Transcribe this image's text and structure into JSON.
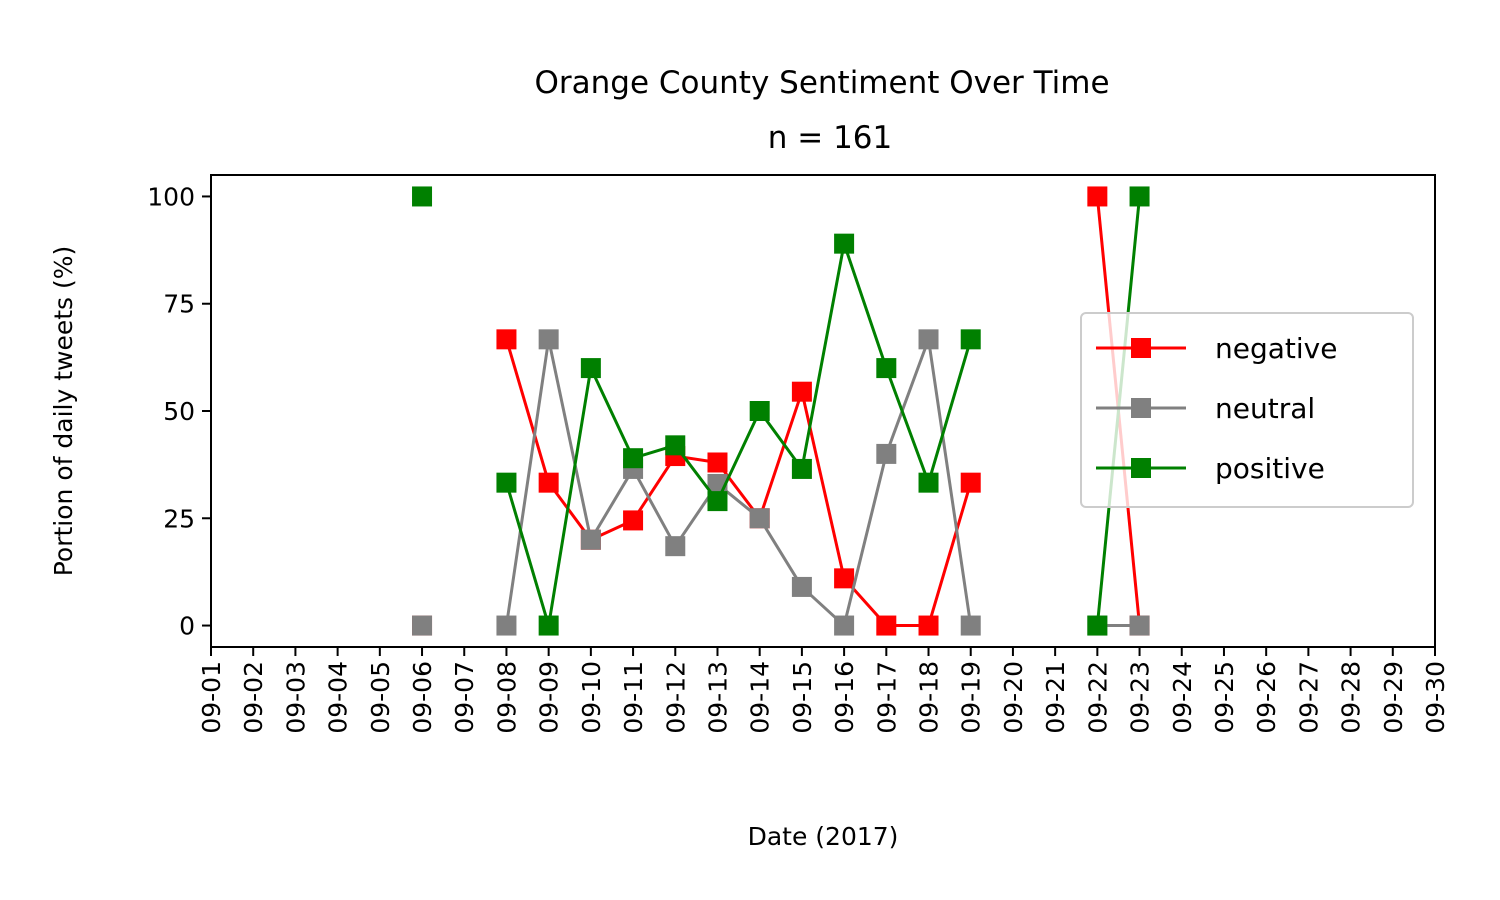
{
  "chart_data": {
    "type": "line",
    "title": "Orange County Sentiment Over Time",
    "subtitle": "n = 161",
    "xlabel": "Date (2017)",
    "ylabel": "Portion of daily tweets (%)",
    "x": [
      "09-01",
      "09-02",
      "09-03",
      "09-04",
      "09-05",
      "09-06",
      "09-07",
      "09-08",
      "09-09",
      "09-10",
      "09-11",
      "09-12",
      "09-13",
      "09-14",
      "09-15",
      "09-16",
      "09-17",
      "09-18",
      "09-19",
      "09-20",
      "09-21",
      "09-22",
      "09-23",
      "09-24",
      "09-25",
      "09-26",
      "09-27",
      "09-28",
      "09-29",
      "09-30"
    ],
    "ylim": [
      -5,
      105
    ],
    "yticks": [
      0,
      25,
      50,
      75,
      100
    ],
    "grid": false,
    "legend_position": "center-right",
    "marker": "square",
    "series": [
      {
        "name": "negative",
        "color": "#ff0000",
        "values": [
          null,
          null,
          null,
          null,
          null,
          0,
          null,
          66.7,
          33.3,
          20,
          24.5,
          39.5,
          38,
          25,
          54.5,
          11,
          0,
          0,
          33.3,
          null,
          null,
          100,
          0,
          null,
          null,
          null,
          null,
          null,
          null,
          null
        ]
      },
      {
        "name": "neutral",
        "color": "#808080",
        "values": [
          null,
          null,
          null,
          null,
          null,
          0,
          null,
          0,
          66.7,
          20,
          36.5,
          18.5,
          33,
          25,
          9,
          0,
          40,
          66.7,
          0,
          null,
          null,
          0,
          0,
          null,
          null,
          null,
          null,
          null,
          null,
          null
        ]
      },
      {
        "name": "positive",
        "color": "#008000",
        "values": [
          null,
          null,
          null,
          null,
          null,
          100,
          null,
          33.3,
          0,
          60,
          39,
          42,
          29,
          50,
          36.5,
          89,
          60,
          33.3,
          66.7,
          null,
          null,
          0,
          100,
          null,
          null,
          null,
          null,
          null,
          null,
          null
        ]
      }
    ]
  }
}
